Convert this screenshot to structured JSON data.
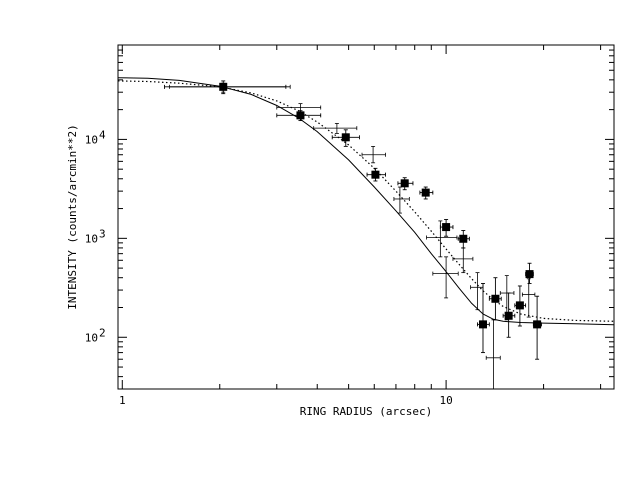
{
  "chart_data": {
    "type": "scatter",
    "xscale": "log",
    "yscale": "log",
    "xlim": [
      0.97,
      33
    ],
    "ylim": [
      30,
      90000
    ],
    "xlabel": "RING RADIUS (arcsec)",
    "ylabel": "INTENSITY (counts/arcmin**2)",
    "x_ticks": [
      {
        "value": 1,
        "label": "1"
      },
      {
        "value": 10,
        "label": "10"
      }
    ],
    "y_ticks": [
      {
        "value": 100,
        "label": "10",
        "exp": "2"
      },
      {
        "value": 1000,
        "label": "10",
        "exp": "3"
      },
      {
        "value": 10000,
        "label": "10",
        "exp": "4"
      }
    ],
    "grid": false,
    "series": [
      {
        "marker": "filled-square",
        "points": [
          {
            "x": 2.05,
            "y": 34000,
            "xlo": 1.35,
            "xhi": 3.2,
            "ylo": 29000,
            "yhi": 39000
          },
          {
            "x": 3.55,
            "y": 17500,
            "xlo": 3.0,
            "xhi": 4.1,
            "ylo": 15500,
            "yhi": 19500
          },
          {
            "x": 4.9,
            "y": 10500,
            "xlo": 4.45,
            "xhi": 5.4,
            "ylo": 8500,
            "yhi": 12500
          },
          {
            "x": 6.05,
            "y": 4400,
            "xlo": 5.7,
            "xhi": 6.5,
            "ylo": 3800,
            "yhi": 5100
          },
          {
            "x": 7.45,
            "y": 3600,
            "xlo": 7.1,
            "xhi": 7.9,
            "ylo": 3100,
            "yhi": 4100
          },
          {
            "x": 8.65,
            "y": 2900,
            "xlo": 8.3,
            "xhi": 9.1,
            "ylo": 2500,
            "yhi": 3300
          },
          {
            "x": 10.0,
            "y": 1300,
            "xlo": 9.6,
            "xhi": 10.5,
            "ylo": 1050,
            "yhi": 1550
          },
          {
            "x": 11.3,
            "y": 990,
            "xlo": 10.9,
            "xhi": 11.8,
            "ylo": 800,
            "yhi": 1200
          },
          {
            "x": 13.0,
            "y": 135,
            "xlo": 12.5,
            "xhi": 13.6,
            "ylo": 70,
            "yhi": 350
          },
          {
            "x": 14.2,
            "y": 245,
            "xlo": 13.6,
            "xhi": 14.8,
            "ylo": 150,
            "yhi": 400
          },
          {
            "x": 15.6,
            "y": 165,
            "xlo": 15.0,
            "xhi": 16.3,
            "ylo": 100,
            "yhi": 280
          },
          {
            "x": 16.9,
            "y": 210,
            "xlo": 16.3,
            "xhi": 17.6,
            "ylo": 130,
            "yhi": 330
          },
          {
            "x": 18.1,
            "y": 435,
            "xlo": 17.6,
            "xhi": 18.6,
            "ylo": 350,
            "yhi": 560
          },
          {
            "x": 19.1,
            "y": 135,
            "xlo": 18.6,
            "xhi": 19.7,
            "ylo": 60,
            "yhi": 260
          }
        ]
      },
      {
        "marker": "cross",
        "points": [
          {
            "x": 2.05,
            "y": 34000,
            "xlo": 1.4,
            "xhi": 3.3,
            "ylo": 30000,
            "yhi": 37000
          },
          {
            "x": 3.55,
            "y": 21000,
            "xlo": 3.0,
            "xhi": 4.1,
            "ylo": 19000,
            "yhi": 23000
          },
          {
            "x": 4.6,
            "y": 13000,
            "xlo": 3.9,
            "xhi": 5.3,
            "ylo": 11500,
            "yhi": 14500
          },
          {
            "x": 5.95,
            "y": 7000,
            "xlo": 5.5,
            "xhi": 6.5,
            "ylo": 5800,
            "yhi": 8500
          },
          {
            "x": 7.2,
            "y": 2500,
            "xlo": 6.9,
            "xhi": 7.7,
            "ylo": 1800,
            "yhi": 3300
          },
          {
            "x": 9.6,
            "y": 1020,
            "xlo": 8.7,
            "xhi": 10.8,
            "ylo": 650,
            "yhi": 1500
          },
          {
            "x": 10.0,
            "y": 440,
            "xlo": 9.1,
            "xhi": 10.9,
            "ylo": 250,
            "yhi": 650
          },
          {
            "x": 11.3,
            "y": 620,
            "xlo": 10.5,
            "xhi": 12.1,
            "ylo": 450,
            "yhi": 800
          },
          {
            "x": 12.5,
            "y": 320,
            "xlo": 11.9,
            "xhi": 13.0,
            "ylo": 190,
            "yhi": 450
          },
          {
            "x": 14.0,
            "y": 62,
            "xlo": 13.3,
            "xhi": 14.7,
            "ylo": 30,
            "yhi": 150
          },
          {
            "x": 15.4,
            "y": 280,
            "xlo": 14.7,
            "xhi": 16.2,
            "ylo": 150,
            "yhi": 420
          },
          {
            "x": 18.0,
            "y": 270,
            "xlo": 17.2,
            "xhi": 18.8,
            "ylo": 160,
            "yhi": 390
          }
        ]
      },
      {
        "style": "solid-line",
        "points": [
          {
            "x": 0.97,
            "y": 42000
          },
          {
            "x": 1.2,
            "y": 41500
          },
          {
            "x": 1.5,
            "y": 39500
          },
          {
            "x": 2.0,
            "y": 34500
          },
          {
            "x": 2.5,
            "y": 28500
          },
          {
            "x": 3.0,
            "y": 22000
          },
          {
            "x": 3.5,
            "y": 16500
          },
          {
            "x": 4.0,
            "y": 12000
          },
          {
            "x": 5.0,
            "y": 6200
          },
          {
            "x": 6.0,
            "y": 3300
          },
          {
            "x": 7.0,
            "y": 1900
          },
          {
            "x": 8.0,
            "y": 1150
          },
          {
            "x": 9.0,
            "y": 700
          },
          {
            "x": 10.0,
            "y": 460
          },
          {
            "x": 11.0,
            "y": 310
          },
          {
            "x": 12.0,
            "y": 220
          },
          {
            "x": 13.0,
            "y": 172
          },
          {
            "x": 14.0,
            "y": 152
          },
          {
            "x": 15.0,
            "y": 145
          },
          {
            "x": 17.0,
            "y": 141
          },
          {
            "x": 20.0,
            "y": 139
          },
          {
            "x": 25.0,
            "y": 137
          },
          {
            "x": 33.0,
            "y": 134
          }
        ]
      },
      {
        "style": "dotted-line",
        "points": [
          {
            "x": 0.97,
            "y": 39000
          },
          {
            "x": 1.2,
            "y": 38500
          },
          {
            "x": 1.5,
            "y": 37000
          },
          {
            "x": 2.0,
            "y": 34000
          },
          {
            "x": 2.5,
            "y": 29500
          },
          {
            "x": 3.0,
            "y": 24500
          },
          {
            "x": 3.5,
            "y": 19500
          },
          {
            "x": 4.0,
            "y": 15000
          },
          {
            "x": 5.0,
            "y": 8800
          },
          {
            "x": 6.0,
            "y": 5100
          },
          {
            "x": 7.0,
            "y": 3000
          },
          {
            "x": 8.0,
            "y": 1850
          },
          {
            "x": 9.0,
            "y": 1180
          },
          {
            "x": 10.0,
            "y": 780
          },
          {
            "x": 11.0,
            "y": 540
          },
          {
            "x": 12.0,
            "y": 390
          },
          {
            "x": 13.0,
            "y": 295
          },
          {
            "x": 14.0,
            "y": 240
          },
          {
            "x": 15.0,
            "y": 205
          },
          {
            "x": 17.0,
            "y": 172
          },
          {
            "x": 20.0,
            "y": 155
          },
          {
            "x": 25.0,
            "y": 148
          },
          {
            "x": 33.0,
            "y": 145
          }
        ]
      }
    ]
  }
}
